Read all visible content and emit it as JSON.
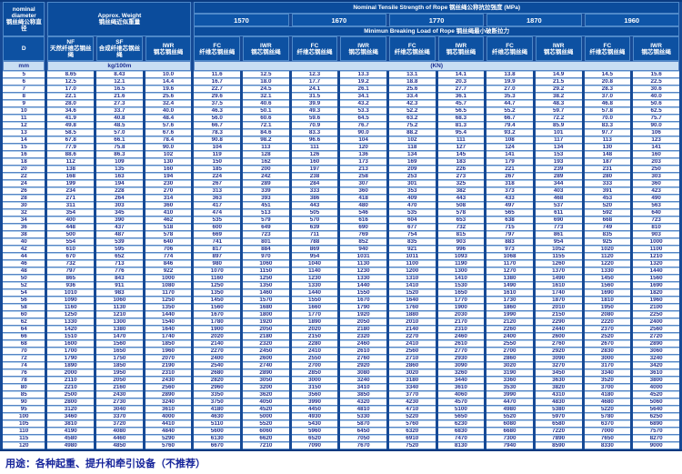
{
  "page": {
    "caption": "用途：各种起重、提升和牵引设备（不推荐）",
    "accent_blue": "#0d51a2",
    "gap_blue": "#164a96",
    "text_navy": "#222f8c"
  },
  "header": {
    "nominal_diameter_en_1": "nominal",
    "nominal_diameter_en_2": "diameter",
    "nominal_diameter_zh": "钢丝绳公称直径",
    "diameter_symbol": "D",
    "diameter_unit": "mm",
    "approx_weight_en": "Approx. Weight",
    "approx_weight_zh": "钢丝绳近似重量",
    "weight_unit": "kg/100m",
    "tensile_title": "Nominal Tensile Strength of Rope 钢丝绳公称抗拉强度 (MPa)",
    "breaking_title": "Minimun Breaking Load of Rope 钢丝绳最小破断拉力",
    "breaking_unit": "(KN)",
    "strengths": [
      "1570",
      "1670",
      "1770",
      "1870",
      "1960"
    ],
    "weight_cols": [
      {
        "code": "NF",
        "zh": "天然纤维芯钢丝绳"
      },
      {
        "code": "SF",
        "zh": "合成纤维芯钢丝绳"
      },
      {
        "code": "IWR",
        "zh": "钢芯钢丝绳"
      }
    ],
    "core_cols": [
      {
        "code": "FC",
        "zh": "纤维芯钢丝绳"
      },
      {
        "code": "IWR",
        "zh": "钢芯钢丝绳"
      }
    ]
  },
  "table": {
    "column_semantics": [
      "D mm",
      "NF kg/100m",
      "SF kg/100m",
      "IWR kg/100m",
      "FC 1570",
      "IWR 1570",
      "FC 1670",
      "IWR 1670",
      "FC 1770",
      "IWR 1770",
      "FC 1870",
      "IWR 1870",
      "FC 1960",
      "IWR 1960"
    ],
    "rows": [
      [
        "5",
        "8.65",
        "8.43",
        "10.0",
        "11.6",
        "12.5",
        "12.3",
        "13.3",
        "13.1",
        "14.1",
        "13.8",
        "14.9",
        "14.5",
        "15.6"
      ],
      [
        "6",
        "12.5",
        "12.1",
        "14.4",
        "16.7",
        "18.0",
        "17.7",
        "19.2",
        "18.8",
        "20.3",
        "19.9",
        "21.5",
        "20.8",
        "22.5"
      ],
      [
        "7",
        "17.0",
        "16.5",
        "19.6",
        "22.7",
        "24.5",
        "24.1",
        "26.1",
        "25.6",
        "27.7",
        "27.0",
        "29.2",
        "28.3",
        "30.6"
      ],
      [
        "8",
        "22.1",
        "21.6",
        "25.6",
        "29.6",
        "32.1",
        "31.5",
        "34.1",
        "33.4",
        "36.1",
        "35.3",
        "38.2",
        "37.0",
        "40.0"
      ],
      [
        "9",
        "28.0",
        "27.3",
        "32.4",
        "37.5",
        "40.6",
        "39.9",
        "43.2",
        "42.3",
        "45.7",
        "44.7",
        "48.3",
        "46.8",
        "50.6"
      ],
      [
        "10",
        "34.6",
        "33.7",
        "40.0",
        "46.3",
        "50.1",
        "49.3",
        "53.3",
        "52.2",
        "56.5",
        "55.2",
        "59.7",
        "57.8",
        "62.5"
      ],
      [
        "11",
        "41.9",
        "40.8",
        "48.4",
        "56.0",
        "60.6",
        "59.6",
        "64.5",
        "63.2",
        "68.3",
        "66.7",
        "72.2",
        "70.0",
        "75.7"
      ],
      [
        "12",
        "49.8",
        "48.5",
        "57.6",
        "66.7",
        "72.1",
        "70.9",
        "76.7",
        "75.2",
        "81.3",
        "79.4",
        "85.9",
        "83.3",
        "90.0"
      ],
      [
        "13",
        "58.5",
        "57.0",
        "67.6",
        "78.3",
        "84.6",
        "83.3",
        "90.0",
        "88.2",
        "95.4",
        "93.2",
        "101",
        "97.7",
        "106"
      ],
      [
        "14",
        "67.8",
        "66.1",
        "78.4",
        "90.8",
        "98.2",
        "96.6",
        "104",
        "102",
        "111",
        "108",
        "117",
        "113",
        "123"
      ],
      [
        "15",
        "77.9",
        "75.8",
        "90.0",
        "104",
        "113",
        "111",
        "120",
        "118",
        "127",
        "124",
        "134",
        "130",
        "141"
      ],
      [
        "16",
        "88.6",
        "86.3",
        "102",
        "119",
        "128",
        "126",
        "136",
        "134",
        "145",
        "141",
        "153",
        "148",
        "160"
      ],
      [
        "18",
        "112",
        "109",
        "130",
        "150",
        "162",
        "160",
        "173",
        "169",
        "183",
        "179",
        "193",
        "187",
        "203"
      ],
      [
        "20",
        "138",
        "135",
        "160",
        "185",
        "200",
        "197",
        "213",
        "209",
        "226",
        "221",
        "239",
        "231",
        "250"
      ],
      [
        "22",
        "168",
        "163",
        "194",
        "224",
        "242",
        "238",
        "258",
        "253",
        "273",
        "267",
        "289",
        "280",
        "303"
      ],
      [
        "24",
        "199",
        "194",
        "230",
        "267",
        "289",
        "284",
        "307",
        "301",
        "325",
        "318",
        "344",
        "333",
        "360"
      ],
      [
        "26",
        "234",
        "228",
        "270",
        "313",
        "339",
        "333",
        "360",
        "353",
        "382",
        "373",
        "403",
        "391",
        "423"
      ],
      [
        "28",
        "271",
        "264",
        "314",
        "363",
        "393",
        "386",
        "418",
        "409",
        "443",
        "433",
        "468",
        "453",
        "490"
      ],
      [
        "30",
        "311",
        "303",
        "360",
        "417",
        "451",
        "443",
        "480",
        "470",
        "508",
        "497",
        "537",
        "520",
        "563"
      ],
      [
        "32",
        "354",
        "345",
        "410",
        "474",
        "513",
        "505",
        "546",
        "535",
        "578",
        "565",
        "611",
        "592",
        "640"
      ],
      [
        "34",
        "400",
        "390",
        "462",
        "535",
        "579",
        "570",
        "616",
        "604",
        "653",
        "638",
        "690",
        "668",
        "723"
      ],
      [
        "36",
        "448",
        "437",
        "518",
        "600",
        "649",
        "639",
        "690",
        "677",
        "732",
        "715",
        "773",
        "749",
        "810"
      ],
      [
        "38",
        "500",
        "487",
        "578",
        "669",
        "723",
        "711",
        "769",
        "754",
        "815",
        "797",
        "861",
        "835",
        "903"
      ],
      [
        "40",
        "554",
        "539",
        "640",
        "741",
        "801",
        "788",
        "852",
        "835",
        "903",
        "883",
        "954",
        "925",
        "1000"
      ],
      [
        "42",
        "610",
        "595",
        "706",
        "817",
        "884",
        "869",
        "940",
        "921",
        "996",
        "973",
        "1052",
        "1020",
        "1100"
      ],
      [
        "44",
        "670",
        "652",
        "774",
        "897",
        "970",
        "954",
        "1031",
        "1011",
        "1093",
        "1068",
        "1155",
        "1120",
        "1210"
      ],
      [
        "46",
        "732",
        "713",
        "846",
        "980",
        "1060",
        "1040",
        "1130",
        "1100",
        "1190",
        "1170",
        "1260",
        "1220",
        "1320"
      ],
      [
        "48",
        "797",
        "776",
        "922",
        "1070",
        "1150",
        "1140",
        "1230",
        "1200",
        "1300",
        "1270",
        "1370",
        "1330",
        "1440"
      ],
      [
        "50",
        "865",
        "843",
        "1000",
        "1160",
        "1250",
        "1230",
        "1330",
        "1310",
        "1410",
        "1380",
        "1490",
        "1450",
        "1560"
      ],
      [
        "52",
        "936",
        "911",
        "1080",
        "1250",
        "1350",
        "1330",
        "1440",
        "1410",
        "1530",
        "1490",
        "1610",
        "1560",
        "1690"
      ],
      [
        "54",
        "1010",
        "983",
        "1170",
        "1350",
        "1460",
        "1440",
        "1550",
        "1520",
        "1650",
        "1610",
        "1740",
        "1690",
        "1820"
      ],
      [
        "56",
        "1090",
        "1060",
        "1250",
        "1450",
        "1570",
        "1550",
        "1670",
        "1640",
        "1770",
        "1730",
        "1870",
        "1810",
        "1960"
      ],
      [
        "58",
        "1160",
        "1130",
        "1350",
        "1560",
        "1680",
        "1660",
        "1790",
        "1760",
        "1900",
        "1860",
        "2010",
        "1950",
        "2100"
      ],
      [
        "60",
        "1250",
        "1210",
        "1440",
        "1670",
        "1800",
        "1770",
        "1920",
        "1880",
        "2030",
        "1990",
        "2150",
        "2080",
        "2250"
      ],
      [
        "62",
        "1330",
        "1300",
        "1540",
        "1780",
        "1920",
        "1890",
        "2050",
        "2010",
        "2170",
        "2120",
        "2290",
        "2220",
        "2400"
      ],
      [
        "64",
        "1420",
        "1380",
        "1640",
        "1900",
        "2050",
        "2020",
        "2180",
        "2140",
        "2310",
        "2260",
        "2440",
        "2370",
        "2560"
      ],
      [
        "66",
        "1510",
        "1470",
        "1740",
        "2020",
        "2180",
        "2150",
        "2320",
        "2270",
        "2460",
        "2400",
        "2600",
        "2520",
        "2720"
      ],
      [
        "68",
        "1600",
        "1560",
        "1850",
        "2140",
        "2320",
        "2280",
        "2460",
        "2410",
        "2610",
        "2550",
        "2760",
        "2670",
        "2890"
      ],
      [
        "70",
        "1700",
        "1650",
        "1960",
        "2270",
        "2450",
        "2410",
        "2610",
        "2560",
        "2770",
        "2700",
        "2920",
        "2830",
        "3060"
      ],
      [
        "72",
        "1790",
        "1750",
        "2070",
        "2400",
        "2600",
        "2550",
        "2760",
        "2710",
        "2930",
        "2860",
        "3090",
        "3000",
        "3240"
      ],
      [
        "74",
        "1890",
        "1850",
        "2190",
        "2540",
        "2740",
        "2700",
        "2920",
        "2860",
        "3090",
        "3020",
        "3270",
        "3170",
        "3420"
      ],
      [
        "76",
        "2000",
        "1950",
        "2310",
        "2680",
        "2890",
        "2850",
        "3080",
        "3020",
        "3260",
        "3190",
        "3450",
        "3340",
        "3610"
      ],
      [
        "78",
        "2110",
        "2050",
        "2430",
        "2820",
        "3050",
        "3000",
        "3240",
        "3180",
        "3440",
        "3360",
        "3630",
        "3520",
        "3800"
      ],
      [
        "80",
        "2210",
        "2160",
        "2560",
        "2960",
        "3200",
        "3150",
        "3410",
        "3340",
        "3610",
        "3530",
        "3820",
        "3700",
        "4000"
      ],
      [
        "85",
        "2500",
        "2430",
        "2890",
        "3350",
        "3620",
        "3560",
        "3850",
        "3770",
        "4060",
        "3990",
        "4310",
        "4180",
        "4520"
      ],
      [
        "90",
        "2800",
        "2730",
        "3240",
        "3750",
        "4050",
        "3990",
        "4320",
        "4230",
        "4570",
        "4470",
        "4830",
        "4680",
        "5060"
      ],
      [
        "95",
        "3120",
        "3040",
        "3610",
        "4180",
        "4520",
        "4450",
        "4810",
        "4710",
        "5100",
        "4980",
        "5380",
        "5220",
        "5640"
      ],
      [
        "100",
        "3460",
        "3370",
        "4000",
        "4630",
        "5000",
        "4930",
        "5330",
        "5220",
        "5650",
        "5520",
        "5970",
        "5780",
        "6250"
      ],
      [
        "105",
        "3810",
        "3720",
        "4410",
        "5110",
        "5520",
        "5430",
        "5870",
        "5760",
        "6230",
        "6080",
        "6580",
        "6370",
        "6890"
      ],
      [
        "110",
        "4190",
        "4080",
        "4840",
        "5600",
        "6060",
        "5960",
        "6450",
        "6320",
        "6830",
        "6680",
        "7220",
        "7000",
        "7570"
      ],
      [
        "115",
        "4580",
        "4460",
        "5290",
        "6130",
        "6620",
        "6520",
        "7050",
        "6910",
        "7470",
        "7300",
        "7890",
        "7650",
        "8270"
      ],
      [
        "120",
        "4980",
        "4850",
        "5760",
        "6670",
        "7210",
        "7090",
        "7670",
        "7520",
        "8130",
        "7940",
        "8590",
        "8330",
        "9000"
      ]
    ]
  }
}
